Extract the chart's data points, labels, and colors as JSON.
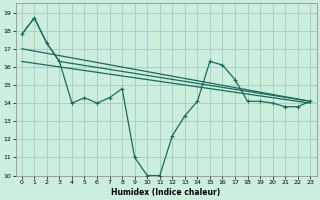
{
  "xlabel": "Humidex (Indice chaleur)",
  "bg_color": "#cceedd",
  "grid_color": "#aacccc",
  "line_color": "#1a6b5a",
  "ylim": [
    10,
    19.5
  ],
  "xlim": [
    -0.5,
    23.5
  ],
  "yticks": [
    10,
    11,
    12,
    13,
    14,
    15,
    16,
    17,
    18,
    19
  ],
  "xticks": [
    0,
    1,
    2,
    3,
    4,
    5,
    6,
    7,
    8,
    9,
    10,
    11,
    12,
    13,
    14,
    15,
    16,
    17,
    18,
    19,
    20,
    21,
    22,
    23
  ],
  "series1_x": [
    0,
    1,
    2,
    3,
    4,
    5,
    6,
    7,
    8,
    9,
    10,
    11,
    12,
    13,
    14,
    15,
    16,
    17,
    18,
    19,
    20,
    21,
    22,
    23
  ],
  "series1_y": [
    17.8,
    18.7,
    17.3,
    16.3,
    14.0,
    14.3,
    14.0,
    14.3,
    14.8,
    11.0,
    10.0,
    10.0,
    12.2,
    13.3,
    14.1,
    16.3,
    16.1,
    15.3,
    14.1,
    14.1,
    14.0,
    13.8,
    13.8,
    14.1
  ],
  "series2_x": [
    0,
    1,
    2,
    3,
    23
  ],
  "series2_y": [
    17.8,
    18.7,
    17.3,
    16.3,
    14.1
  ],
  "series3_x": [
    0,
    23
  ],
  "series3_y": [
    17.0,
    14.1
  ],
  "series4_x": [
    0,
    23
  ],
  "series4_y": [
    16.3,
    14.0
  ]
}
